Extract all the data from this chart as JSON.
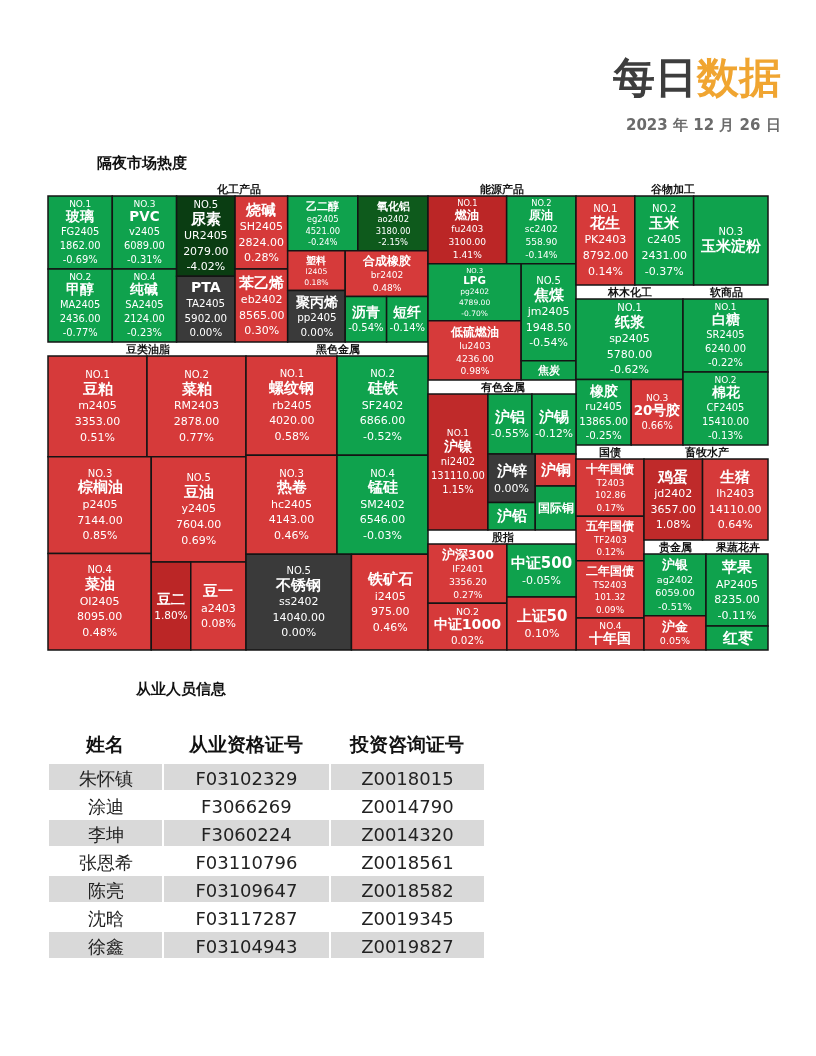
{
  "chart_data": [
    {
      "type": "other",
      "title": "隔夜市场热度",
      "annotations": [
        "每日数据",
        "2023 年 12 月 26 日"
      ]
    },
    {
      "type": "other",
      "title": "化工产品",
      "color": "#141414",
      "categories": [
        "玻璃",
        "甲醇",
        "PVC",
        "纯碱",
        "尿素",
        "PTA",
        "烧碱",
        "苯乙烯",
        "乙二醇",
        "氧化铝",
        "塑料",
        "聚丙烯",
        "合成橡胶",
        "沥青",
        "短纤"
      ],
      "values": [
        -0.69,
        -0.77,
        -0.31,
        -0.23,
        -4.02,
        0.0,
        0.28,
        0.3,
        -0.24,
        -2.15,
        0.18,
        0.0,
        0.48,
        -0.54,
        -0.14
      ],
      "value_labels": [
        "FG2405\n1862.00\n-0.69%",
        "MA2405\n2436.00\n-0.77%",
        "v2405\n6089.00\n-0.31%",
        "SA2405\n2124.00\n-0.23%",
        "UR2405\n2079.00\n-4.02%",
        "TA2405\n5902.00\n0.00%",
        "SH2405\n2824.00\n0.28%",
        "eb2402\n8565.00\n0.30%",
        "eg2405\n4521.00\n-0.24%",
        "ao2402\n3180.00\n-2.15%",
        "l2405\n0.18%",
        "pp2405\n0.00%",
        "br2402\n0.48%",
        "-0.54%",
        "-0.14%"
      ],
      "colors": [
        "#0fa24d",
        "#0fa24d",
        "#0fa24d",
        "#0fa24d",
        "#0a3d12",
        "#3a3a3a",
        "#d63a3a",
        "#d63a3a",
        "#0fa24d",
        "#0e5a1c",
        "#d63a3a",
        "#3a3a3a",
        "#d63a3a",
        "#0fa24d",
        "#0fa24d"
      ],
      "annotations": [
        {
          "text": "NO.1",
          "x": "玻璃"
        },
        {
          "text": "NO.2",
          "x": "甲醇"
        },
        {
          "text": "NO.3",
          "x": "PVC"
        },
        {
          "text": "NO.4",
          "x": "纯碱"
        },
        {
          "text": "NO.5",
          "x": "尿素"
        }
      ]
    },
    {
      "type": "other",
      "title": "能源产品",
      "color": "#141414",
      "categories": [
        "燃油",
        "原油",
        "LPG",
        "低硫燃油",
        "焦煤",
        "焦炭"
      ],
      "values": [
        1.41,
        -0.14,
        -0.7,
        0.98,
        -0.54,
        null
      ],
      "value_labels": [
        "fu2403\n3100.00\n1.41%",
        "sc2402\n558.90\n-0.14%",
        "pg2402\n4789.00\n-0.70%",
        "lu2403\n4236.00\n0.98%",
        "jm2405\n1948.50\n-0.54%",
        null
      ],
      "colors": [
        "#bb2626",
        "#0fa24d",
        "#0fa24d",
        "#d63a3a",
        "#0fa24d",
        "#0fa24d"
      ],
      "annotations": [
        {
          "text": "NO.1",
          "x": "燃油"
        },
        {
          "text": "NO.2",
          "x": "原油"
        },
        {
          "text": "NO.3",
          "x": "LPG"
        },
        {
          "text": "NO.5",
          "x": "焦煤"
        }
      ]
    },
    {
      "type": "other",
      "title": "谷物加工",
      "color": "#141414",
      "categories": [
        "花生",
        "玉米",
        "玉米淀粉"
      ],
      "values": [
        0.14,
        -0.37,
        null
      ],
      "value_labels": [
        "PK2403\n8792.00\n0.14%",
        "c2405\n2431.00\n-0.37%",
        null
      ],
      "colors": [
        "#d63a3a",
        "#0fa24d",
        "#0fa24d"
      ],
      "annotations": [
        {
          "text": "NO.1",
          "x": "花生"
        },
        {
          "text": "NO.2",
          "x": "玉米"
        },
        {
          "text": "NO.3",
          "x": "玉米淀粉"
        }
      ]
    },
    {
      "type": "other",
      "title": "林木化工",
      "color": "#141414",
      "categories": [
        "纸浆",
        "橡胶",
        "20号胶"
      ],
      "values": [
        -0.62,
        -0.25,
        0.66
      ],
      "value_labels": [
        "sp2405\n5780.00\n-0.62%",
        "ru2405\n13865.00\n-0.25%",
        "0.66%"
      ],
      "colors": [
        "#0fa24d",
        "#0fa24d",
        "#d63a3a"
      ],
      "annotations": [
        {
          "text": "NO.1",
          "x": "纸浆"
        },
        {
          "text": "NO.3",
          "x": "20号胶"
        }
      ]
    },
    {
      "type": "other",
      "title": "软商品",
      "color": "#141414",
      "categories": [
        "白糖",
        "棉花"
      ],
      "values": [
        -0.22,
        -0.13
      ],
      "value_labels": [
        "SR2405\n6240.00\n-0.22%",
        "CF2405\n15410.00\n-0.13%"
      ],
      "colors": [
        "#0fa24d",
        "#0fa24d"
      ],
      "annotations": [
        {
          "text": "NO.1",
          "x": "白糖"
        },
        {
          "text": "NO.2",
          "x": "棉花"
        }
      ]
    },
    {
      "type": "other",
      "title": "豆类油脂",
      "color": "#141414",
      "categories": [
        "豆粕",
        "菜粕",
        "棕榈油",
        "菜油",
        "豆油",
        "豆二",
        "豆一"
      ],
      "values": [
        0.51,
        0.77,
        0.85,
        0.48,
        0.69,
        1.8,
        0.08
      ],
      "value_labels": [
        "m2405\n3353.00\n0.51%",
        "RM2403\n2878.00\n0.77%",
        "p2405\n7144.00\n0.85%",
        "OI2405\n8095.00\n0.48%",
        "y2405\n7604.00\n0.69%",
        "1.80%",
        "a2403\n0.08%"
      ],
      "colors": [
        "#d63a3a",
        "#d63a3a",
        "#d63a3a",
        "#d63a3a",
        "#d63a3a",
        "#bb2626",
        "#d63a3a"
      ],
      "annotations": [
        {
          "text": "NO.1",
          "x": "豆粕"
        },
        {
          "text": "NO.2",
          "x": "菜粕"
        },
        {
          "text": "NO.3",
          "x": "棕榈油"
        },
        {
          "text": "NO.4",
          "x": "菜油"
        },
        {
          "text": "NO.5",
          "x": "豆油"
        }
      ]
    },
    {
      "type": "other",
      "title": "黑色金属",
      "color": "#141414",
      "categories": [
        "螺纹钢",
        "硅铁",
        "热卷",
        "锰硅",
        "不锈钢",
        "铁矿石"
      ],
      "values": [
        0.58,
        -0.52,
        0.46,
        -0.03,
        0.0,
        0.46
      ],
      "value_labels": [
        "rb2405\n4020.00\n0.58%",
        "SF2402\n6866.00\n-0.52%",
        "hc2405\n4143.00\n0.46%",
        "SM2402\n6546.00\n-0.03%",
        "ss2402\n14040.00\n0.00%",
        "i2405\n975.00\n0.46%"
      ],
      "colors": [
        "#d63a3a",
        "#0fa24d",
        "#d63a3a",
        "#0fa24d",
        "#3a3a3a",
        "#d63a3a"
      ],
      "annotations": [
        {
          "text": "NO.1",
          "x": "螺纹钢"
        },
        {
          "text": "NO.2",
          "x": "硅铁"
        },
        {
          "text": "NO.3",
          "x": "热卷"
        },
        {
          "text": "NO.4",
          "x": "锰硅"
        },
        {
          "text": "NO.5",
          "x": "不锈钢"
        }
      ]
    },
    {
      "type": "other",
      "title": "有色金属",
      "color": "#141414",
      "categories": [
        "沪镍",
        "沪铝",
        "沪锡",
        "沪锌",
        "沪铅",
        "沪铜",
        "国际铜"
      ],
      "values": [
        1.15,
        -0.55,
        -0.12,
        0.0,
        null,
        null,
        null
      ],
      "value_labels": [
        "ni2402\n131110.00\n1.15%",
        "-0.55%",
        "-0.12%",
        "0.00%",
        null,
        null,
        null
      ],
      "colors": [
        "#bf2a2a",
        "#0fa24d",
        "#0fa24d",
        "#3a3a3a",
        "#0fa24d",
        "#d63a3a",
        "#0fa24d"
      ],
      "annotations": [
        {
          "text": "NO.1",
          "x": "沪镍"
        }
      ]
    },
    {
      "type": "other",
      "title": "国债",
      "color": "#141414",
      "categories": [
        "十年国债",
        "五年国债",
        "二年国债",
        "十年国"
      ],
      "values": [
        0.17,
        0.12,
        0.09,
        null
      ],
      "value_labels": [
        "T2403\n102.86\n0.17%",
        "TF2403\n0.12%",
        "TS2403\n101.32\n0.09%",
        null
      ],
      "colors": [
        "#d63a3a",
        "#d63a3a",
        "#d63a3a",
        "#d63a3a"
      ],
      "annotations": [
        {
          "text": "NO.4",
          "x": "十年国"
        }
      ]
    },
    {
      "type": "other",
      "title": "股指",
      "color": "#141414",
      "categories": [
        "沪深300",
        "中证1000",
        "中证500",
        "上证50"
      ],
      "values": [
        0.27,
        0.02,
        -0.05,
        0.1
      ],
      "value_labels": [
        "IF2401\n3356.20\n0.27%",
        "0.02%",
        "-0.05%",
        "0.10%"
      ],
      "colors": [
        "#d63a3a",
        "#d63a3a",
        "#0fa24d",
        "#d63a3a"
      ],
      "annotations": [
        {
          "text": "NO.2",
          "x": "中证1000"
        }
      ]
    },
    {
      "type": "other",
      "title": "贵金属",
      "color": "#141414",
      "categories": [
        "沪银",
        "沪金"
      ],
      "values": [
        -0.51,
        0.05
      ],
      "value_labels": [
        "ag2402\n6059.00\n-0.51%",
        "0.05%"
      ],
      "colors": [
        "#0fa24d",
        "#d63a3a"
      ]
    },
    {
      "type": "other",
      "title": "果蔬花卉",
      "color": "#141414",
      "categories": [
        "苹果",
        "红枣"
      ],
      "values": [
        -0.11,
        null
      ],
      "value_labels": [
        "AP2405\n8235.00\n-0.11%",
        null
      ],
      "colors": [
        "#0fa24d",
        "#0fa24d"
      ]
    },
    {
      "type": "other",
      "title": "畜牧水产",
      "color": "#141414",
      "categories": [
        "鸡蛋",
        "生猪"
      ],
      "values": [
        1.08,
        0.64
      ],
      "value_labels": [
        "jd2402\n3657.00\n1.08%",
        "lh2403\n14110.00\n0.64%"
      ],
      "colors": [
        "#bf2a2a",
        "#d63a3a"
      ]
    },
    {
      "type": "other",
      "title": "从业人员信息",
      "categories": [
        "姓名",
        "从业资格证号",
        "投资咨询证号"
      ],
      "cell_labels": [
        [
          "朱怀镇",
          "F03102329",
          "Z0018015"
        ],
        [
          "涂迪",
          "F3066269",
          "Z0014790"
        ],
        [
          "李坤",
          "F3060224",
          "Z0014320"
        ],
        [
          "张恩希",
          "F03110796",
          "Z0018561"
        ],
        [
          "陈亮",
          "F03109647",
          "Z0018582"
        ],
        [
          "沈晗",
          "F03117287",
          "Z0019345"
        ],
        [
          "徐鑫",
          "F03104943",
          "Z0019827"
        ]
      ]
    }
  ]
}
